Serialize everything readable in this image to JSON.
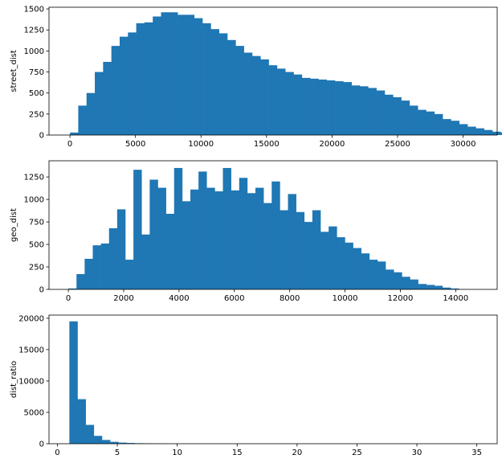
{
  "chart_data": [
    {
      "type": "bar",
      "ylabel": "street_dist",
      "bar_color": "#1f77b4",
      "xlim": [
        -1600,
        32600
      ],
      "ylim": [
        0,
        1520
      ],
      "xticks": [
        0,
        5000,
        10000,
        15000,
        20000,
        25000,
        30000
      ],
      "yticks": [
        0,
        250,
        500,
        750,
        1000,
        1250,
        1500
      ],
      "bin_start": 0,
      "bin_width": 632,
      "values": [
        30,
        350,
        500,
        750,
        870,
        1060,
        1170,
        1220,
        1330,
        1340,
        1410,
        1460,
        1460,
        1430,
        1430,
        1390,
        1330,
        1260,
        1210,
        1130,
        1060,
        980,
        940,
        900,
        830,
        790,
        750,
        720,
        680,
        670,
        660,
        650,
        640,
        630,
        590,
        580,
        560,
        530,
        480,
        450,
        410,
        350,
        300,
        280,
        250,
        190,
        170,
        130,
        100,
        80,
        60,
        40,
        30,
        20,
        10
      ]
    },
    {
      "type": "bar",
      "ylabel": "geo_dist",
      "bar_color": "#1f77b4",
      "xlim": [
        -700,
        15500
      ],
      "ylim": [
        0,
        1430
      ],
      "xticks": [
        0,
        2000,
        4000,
        6000,
        8000,
        10000,
        12000,
        14000
      ],
      "yticks": [
        0,
        250,
        500,
        750,
        1000,
        1250
      ],
      "bin_start": 0,
      "bin_width": 294,
      "values": [
        10,
        170,
        340,
        490,
        510,
        680,
        890,
        330,
        1330,
        610,
        1220,
        1130,
        840,
        1350,
        980,
        1110,
        1310,
        1130,
        1090,
        1350,
        1100,
        1240,
        1070,
        1130,
        960,
        1200,
        880,
        1060,
        860,
        750,
        880,
        640,
        700,
        580,
        520,
        460,
        400,
        330,
        310,
        220,
        190,
        140,
        110,
        60,
        50,
        40,
        20,
        10
      ]
    },
    {
      "type": "bar",
      "ylabel": "dist_ratio",
      "bar_color": "#1f77b4",
      "xlim": [
        -0.7,
        36.7
      ],
      "ylim": [
        0,
        20500
      ],
      "xticks": [
        0,
        5,
        10,
        15,
        20,
        25,
        30,
        35
      ],
      "yticks": [
        0,
        5000,
        10000,
        15000,
        20000
      ],
      "bin_start": 1,
      "bin_width": 0.68,
      "values": [
        19500,
        7100,
        3000,
        1250,
        600,
        300,
        180,
        120,
        80,
        60,
        40,
        25
      ]
    }
  ]
}
